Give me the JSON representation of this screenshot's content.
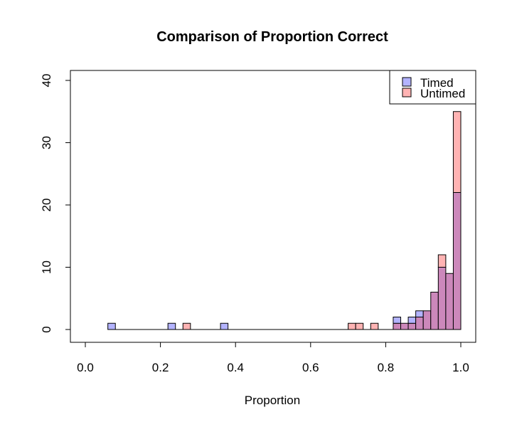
{
  "chart_data": {
    "type": "histogram",
    "title": "Comparison of Proportion Correct",
    "xlabel": "Proportion",
    "ylabel": "",
    "xlim": [
      -0.04,
      1.04
    ],
    "ylim": [
      0,
      40
    ],
    "x_ticks": [
      "0.0",
      "0.2",
      "0.4",
      "0.6",
      "0.8",
      "1.0"
    ],
    "y_ticks": [
      "0",
      "10",
      "20",
      "30",
      "40"
    ],
    "bin_width": 0.02,
    "grid": false,
    "legend_position": "top-right",
    "series": [
      {
        "name": "Timed",
        "color": "#b3b3ff",
        "bins": [
          {
            "start": 0.06,
            "count": 1
          },
          {
            "start": 0.22,
            "count": 1
          },
          {
            "start": 0.36,
            "count": 1
          },
          {
            "start": 0.82,
            "count": 2
          },
          {
            "start": 0.84,
            "count": 1
          },
          {
            "start": 0.86,
            "count": 2
          },
          {
            "start": 0.88,
            "count": 3
          },
          {
            "start": 0.9,
            "count": 3
          },
          {
            "start": 0.92,
            "count": 6
          },
          {
            "start": 0.94,
            "count": 10
          },
          {
            "start": 0.96,
            "count": 9
          },
          {
            "start": 0.98,
            "count": 22
          }
        ]
      },
      {
        "name": "Untimed",
        "color": "#ffb3b3",
        "bins": [
          {
            "start": 0.26,
            "count": 1
          },
          {
            "start": 0.7,
            "count": 1
          },
          {
            "start": 0.72,
            "count": 1
          },
          {
            "start": 0.76,
            "count": 1
          },
          {
            "start": 0.82,
            "count": 1
          },
          {
            "start": 0.84,
            "count": 1
          },
          {
            "start": 0.86,
            "count": 1
          },
          {
            "start": 0.88,
            "count": 2
          },
          {
            "start": 0.9,
            "count": 3
          },
          {
            "start": 0.92,
            "count": 6
          },
          {
            "start": 0.94,
            "count": 12
          },
          {
            "start": 0.96,
            "count": 9
          },
          {
            "start": 0.98,
            "count": 35
          }
        ]
      }
    ],
    "overlap_color": "#cc88bb"
  }
}
